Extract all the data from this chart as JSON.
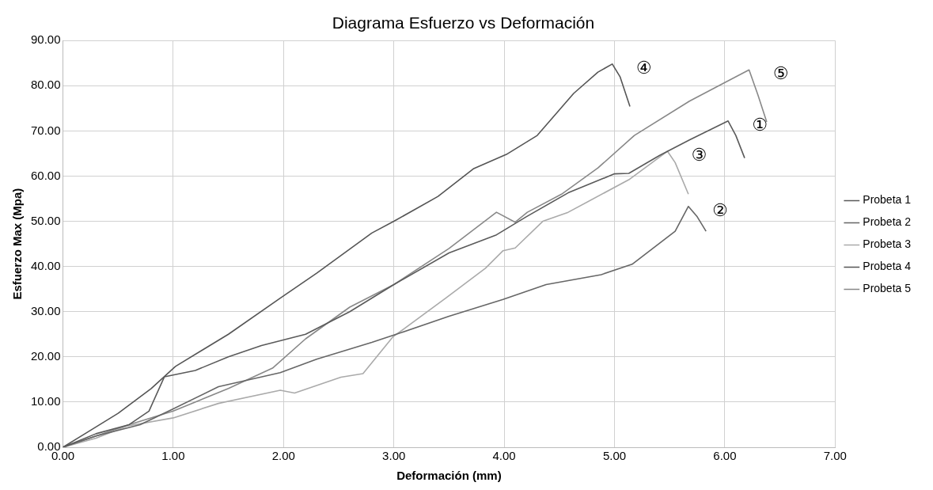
{
  "chart_data": {
    "type": "line",
    "title": "Diagrama Esfuerzo vs Deformación",
    "xlabel": "Deformación (mm)",
    "ylabel": "Esfuerzo Max (Mpa)",
    "xlim": [
      0,
      7
    ],
    "xticks": [
      {
        "value": 0,
        "label": "0.00"
      },
      {
        "value": 1,
        "label": "1.00"
      },
      {
        "value": 2,
        "label": "2.00"
      },
      {
        "value": 3,
        "label": "3.00"
      },
      {
        "value": 4,
        "label": "4.00"
      },
      {
        "value": 5,
        "label": "5.00"
      },
      {
        "value": 6,
        "label": "6.00"
      },
      {
        "value": 7,
        "label": "7.00"
      }
    ],
    "ylim": [
      0,
      90
    ],
    "yticks": [
      {
        "value": 0,
        "label": "0.00"
      },
      {
        "value": 10,
        "label": "10.00"
      },
      {
        "value": 20,
        "label": "20.00"
      },
      {
        "value": 30,
        "label": "30.00"
      },
      {
        "value": 40,
        "label": "40.00"
      },
      {
        "value": 50,
        "label": "50.00"
      },
      {
        "value": 60,
        "label": "60.00"
      },
      {
        "value": 70,
        "label": "70.00"
      },
      {
        "value": 80,
        "label": "80.00"
      },
      {
        "value": 90,
        "label": "90.00"
      }
    ],
    "grid": true,
    "legend": "right",
    "marker": "none",
    "line_style": "solid",
    "series": [
      {
        "name": "Probeta 1",
        "color": "#5a5a5a",
        "x": [
          0,
          0.3,
          0.6,
          0.78,
          0.92,
          1.2,
          1.5,
          1.8,
          2.2,
          2.6,
          3.0,
          3.5,
          3.93,
          4.2,
          4.58,
          5.0,
          5.13,
          5.41,
          5.68,
          6.03,
          6.1,
          6.18
        ],
        "values": [
          0,
          3,
          5,
          8,
          15.6,
          17,
          20,
          22.5,
          25,
          30,
          36,
          43,
          47,
          51,
          56.3,
          60.5,
          60.6,
          64.6,
          68,
          72.2,
          69,
          64
        ]
      },
      {
        "name": "Probeta 2",
        "color": "#666666",
        "x": [
          0,
          0.3,
          0.7,
          1.0,
          1.41,
          1.97,
          2.3,
          2.8,
          3.07,
          3.5,
          3.99,
          4.38,
          4.88,
          5.16,
          5.55,
          5.67,
          5.75,
          5.83
        ],
        "values": [
          0,
          2.5,
          5,
          8.5,
          13.4,
          16.5,
          19.5,
          23.2,
          25.4,
          29,
          32.7,
          36,
          38.2,
          40.5,
          47.8,
          53.3,
          51,
          47.8
        ]
      },
      {
        "name": "Probeta 3",
        "color": "#aaaaaa",
        "x": [
          0,
          0.3,
          0.58,
          1.0,
          1.41,
          1.97,
          2.1,
          2.52,
          2.72,
          2.99,
          3.47,
          3.83,
          3.99,
          4.1,
          4.35,
          4.58,
          5.13,
          5.48,
          5.55,
          5.67
        ],
        "values": [
          0,
          2,
          4.7,
          6.5,
          9.7,
          12.6,
          12,
          15.5,
          16.3,
          24.4,
          33,
          39.6,
          43.5,
          44.1,
          50,
          52,
          59.2,
          65.5,
          63,
          56
        ]
      },
      {
        "name": "Probeta 4",
        "color": "#555555",
        "x": [
          0,
          0.2,
          0.5,
          0.8,
          1.02,
          1.5,
          1.97,
          2.3,
          2.8,
          3.0,
          3.4,
          3.72,
          4.02,
          4.3,
          4.63,
          4.85,
          4.98,
          5.05,
          5.14
        ],
        "values": [
          0,
          3,
          7.5,
          13,
          17.9,
          25,
          33,
          38.5,
          47.4,
          50,
          55.5,
          61.6,
          64.8,
          69,
          78.3,
          83,
          84.8,
          82,
          75.4
        ]
      },
      {
        "name": "Probeta 5",
        "color": "#888888",
        "x": [
          0,
          0.3,
          0.6,
          1.0,
          1.5,
          1.9,
          2.2,
          2.6,
          3.0,
          3.5,
          3.93,
          4.1,
          4.21,
          4.52,
          4.85,
          5.18,
          5.68,
          5.97,
          6.22,
          6.3,
          6.38
        ],
        "values": [
          0,
          2.5,
          5,
          8,
          13,
          17.5,
          24,
          31,
          36,
          44,
          52,
          49.8,
          52,
          56,
          61.8,
          69,
          76.6,
          80.3,
          83.5,
          78,
          72
        ]
      }
    ],
    "annotations": [
      {
        "text": "④",
        "x": 4.98,
        "y": 84.8
      },
      {
        "text": "⑤",
        "x": 6.22,
        "y": 83.5
      },
      {
        "text": "①",
        "x": 6.03,
        "y": 72.2
      },
      {
        "text": "③",
        "x": 5.48,
        "y": 65.5
      },
      {
        "text": "②",
        "x": 5.67,
        "y": 53.3
      }
    ]
  }
}
